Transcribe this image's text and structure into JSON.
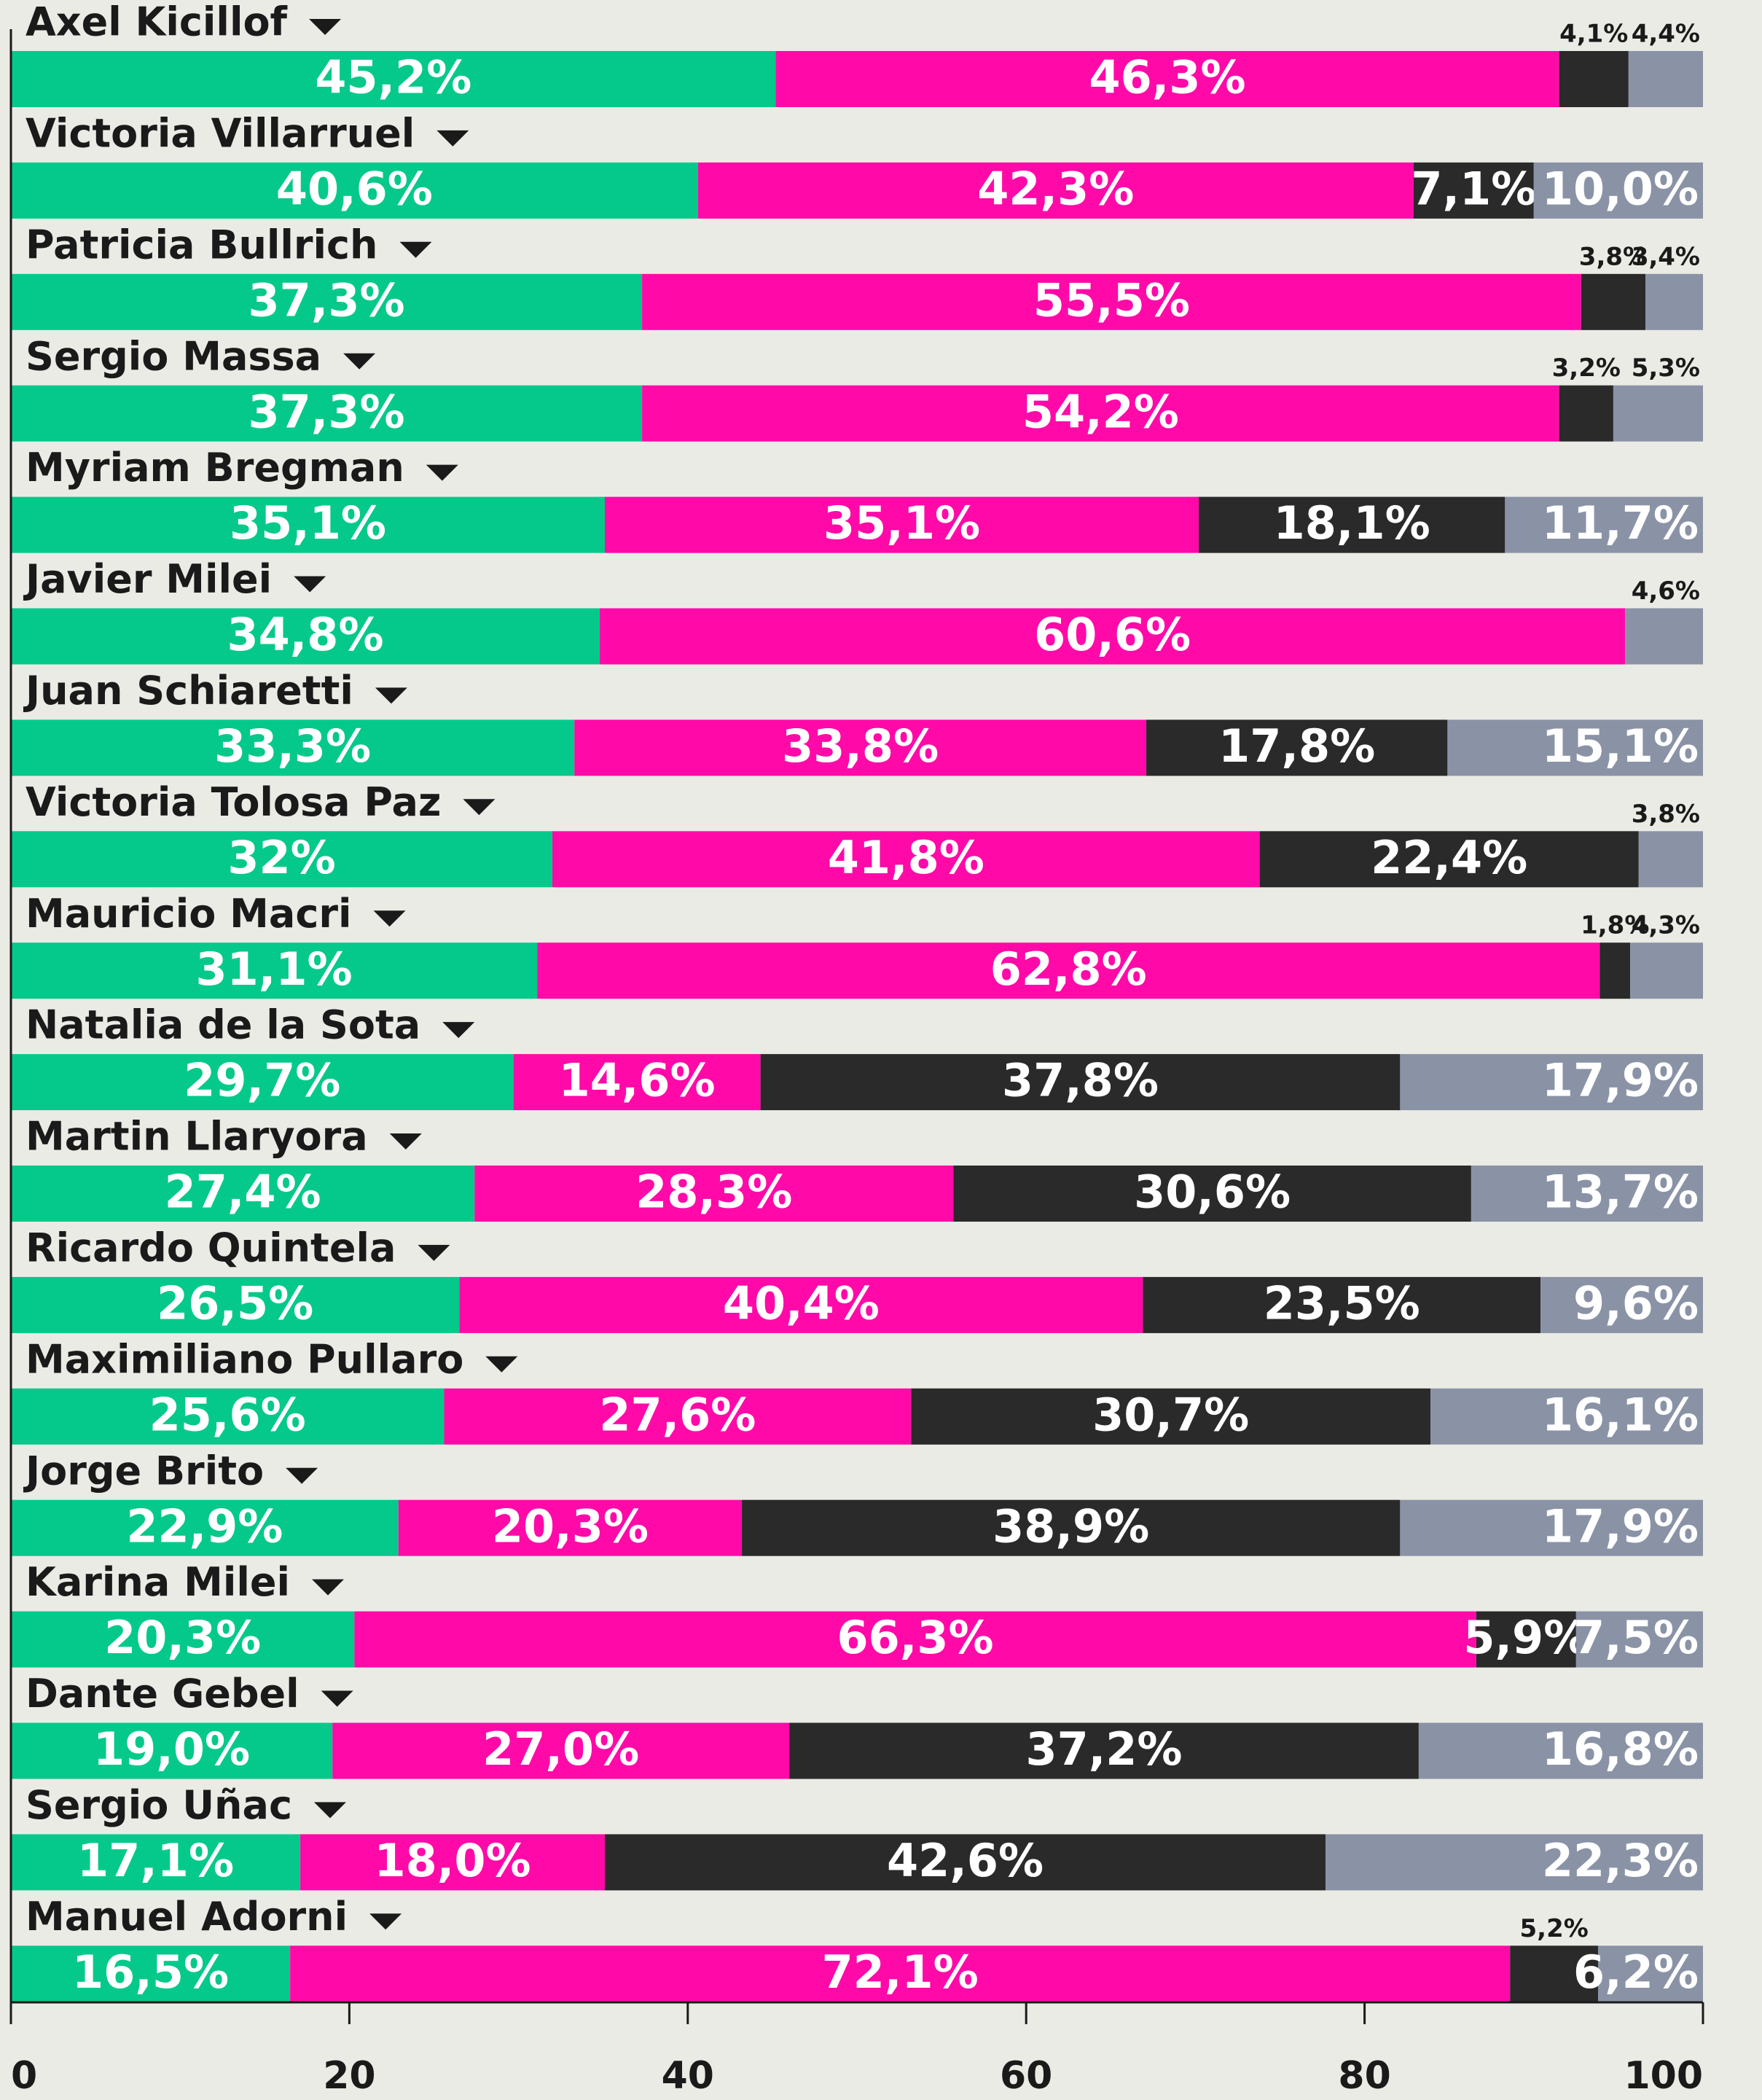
{
  "chart_data": {
    "type": "bar",
    "orientation": "horizontal",
    "stacked": true,
    "categories": [
      "Axel Kicillof",
      "Victoria Villarruel",
      "Patricia Bullrich",
      "Sergio Massa",
      "Myriam Bregman",
      "Javier Milei",
      "Juan Schiaretti",
      "Victoria Tolosa Paz",
      "Mauricio Macri",
      "Natalia de la Sota",
      "Martin Llaryora",
      "Ricardo Quintela",
      "Maximiliano Pullaro",
      "Jorge Brito",
      "Karina Milei",
      "Dante Gebel",
      "Sergio Uñac",
      "Manuel Adorni"
    ],
    "series": [
      {
        "color": "#05c98a",
        "values": [
          45.2,
          40.6,
          37.3,
          37.3,
          35.1,
          34.8,
          33.3,
          32,
          31.1,
          29.7,
          27.4,
          26.5,
          25.6,
          22.9,
          20.3,
          19.0,
          17.1,
          16.5
        ],
        "value_labels": [
          "45,2%",
          "40,6%",
          "37,3%",
          "37,3%",
          "35,1%",
          "34,8%",
          "33,3%",
          "32%",
          "31,1%",
          "29,7%",
          "27,4%",
          "26,5%",
          "25,6%",
          "22,9%",
          "20,3%",
          "19,0%",
          "17,1%",
          "16,5%"
        ]
      },
      {
        "color": "#ff0aa8",
        "values": [
          46.3,
          42.3,
          55.5,
          54.2,
          35.1,
          60.6,
          33.8,
          41.8,
          62.8,
          14.6,
          28.3,
          40.4,
          27.6,
          20.3,
          66.3,
          27.0,
          18.0,
          72.1
        ],
        "value_labels": [
          "46,3%",
          "42,3%",
          "55,5%",
          "54,2%",
          "35,1%",
          "60,6%",
          "33,8%",
          "41,8%",
          "62,8%",
          "14,6%",
          "28,3%",
          "40,4%",
          "27,6%",
          "20,3%",
          "66,3%",
          "27,0%",
          "18,0%",
          "72,1%"
        ]
      },
      {
        "color": "#2a2a2a",
        "values": [
          4.1,
          7.1,
          3.8,
          3.2,
          18.1,
          null,
          17.8,
          22.4,
          1.8,
          37.8,
          30.6,
          23.5,
          30.7,
          38.9,
          5.9,
          37.2,
          42.6,
          5.2
        ],
        "value_labels": [
          "4,1%",
          "7,1%",
          "3,8%",
          "3,2%",
          "18,1%",
          null,
          "17,8%",
          "22,4%",
          "1,8%",
          "37,8%",
          "30,6%",
          "23,5%",
          "30,7%",
          "38,9%",
          "5,9%",
          "37,2%",
          "42,6%",
          "5,2%"
        ]
      },
      {
        "color": "#8a93a6",
        "values": [
          4.4,
          10.0,
          3.4,
          5.3,
          11.7,
          4.6,
          15.1,
          3.8,
          4.3,
          17.9,
          13.7,
          9.6,
          16.1,
          17.9,
          7.5,
          16.8,
          22.3,
          6.2
        ],
        "value_labels": [
          "4,4%",
          "10,0%",
          "3,4%",
          "5,3%",
          "11,7%",
          "4,6%",
          "15,1%",
          "3,8%",
          "4,3%",
          "17,9%",
          "13,7%",
          "9,6%",
          "16,1%",
          "17,9%",
          "7,5%",
          "16,8%",
          "22,3%",
          "6,2%"
        ]
      }
    ],
    "xlim": [
      0,
      100
    ],
    "xticks": [
      0,
      20,
      40,
      60,
      80,
      100
    ]
  }
}
